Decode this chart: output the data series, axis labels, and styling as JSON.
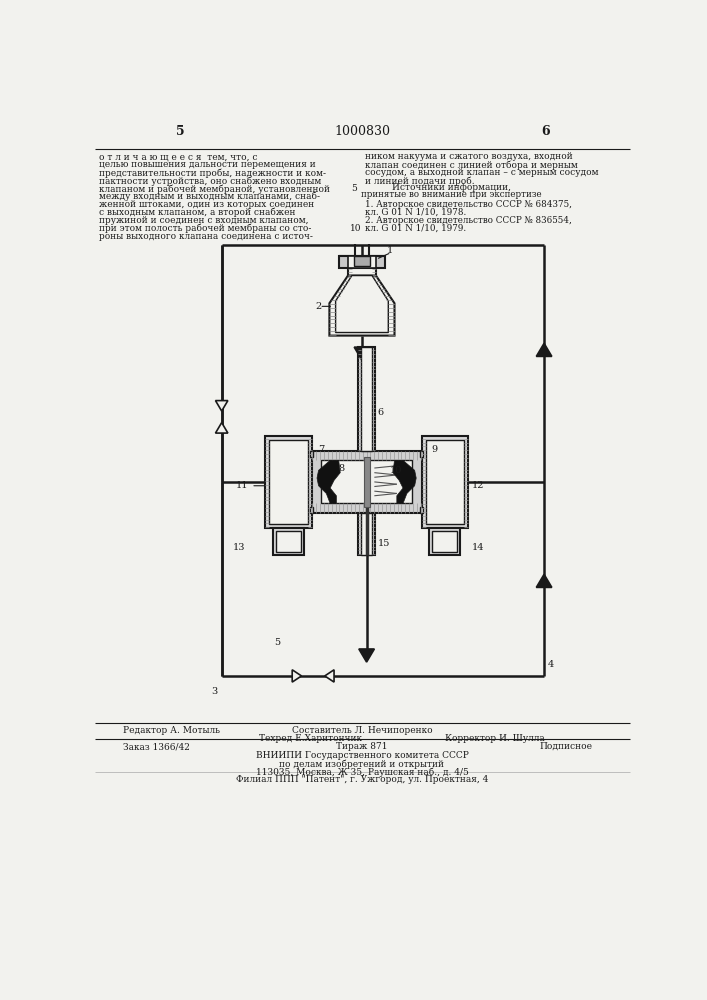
{
  "title_number": "1000830",
  "page_left": "5",
  "page_right": "6",
  "bg_color": "#f2f2ee",
  "line_color": "#1a1a1a",
  "text_color": "#1a1a1a",
  "left_col_lines": [
    "о т л и ч а ю щ е е с я  тем, что, с",
    "целью повышения дальности перемещения и",
    "представительности пробы, надежности и ком-",
    "пактности устройства, оно снабжено входным",
    "клапаном и рабочей мембраной, установленной",
    "между входным и выходным клапанами, снаб-",
    "женной штоками, один из которых соединен",
    "с выходным клапаном, а второй снабжен",
    "пружиной и соединен с входным клапаном,",
    "при этом полость рабочей мембраны со сто-",
    "роны выходного клапана соединена с источ-"
  ],
  "right_col_lines": [
    "ником накуума и сжатого воздуха, входной",
    "клапан соединен с линией отбора и мерным",
    "сосудом, а выходной клапан – с мерным сосудом",
    "и линией подачи проб."
  ],
  "sources_title": "Источники информации,",
  "sources_subtitle": "принятые во внимание при экспертизе",
  "source1_line1": "1. Авторское свидетельство СССР № 684375,",
  "source1_line2": "кл. G 01 N 1/10, 1978.",
  "source2_line1": "2. Авторское свидетельство СССР № 836554,",
  "source2_line2": "кл. G 01 N 1/10, 1979.",
  "footer_editor": "Редактор А. Мотыль",
  "footer_composer": "Составитель Л. Нечипоренко",
  "footer_tech": "Техред Е.Харитончик",
  "footer_corrector": "Корректор И. Шулла",
  "footer_order": "Заказ 1366/42",
  "footer_tirage": "Тираж 871",
  "footer_signed": "Подписное",
  "footer_vniiipi": "ВНИИПИ Государственного комитета СССР",
  "footer_affairs": "по делам изобретений и открытий",
  "footer_address": "113035, Москва, Ж 35, Раушская наб., д. 4/5",
  "footer_filial": "Филиал ППП \"Патент\", г. Ужгород, ул. Проектная, 4"
}
